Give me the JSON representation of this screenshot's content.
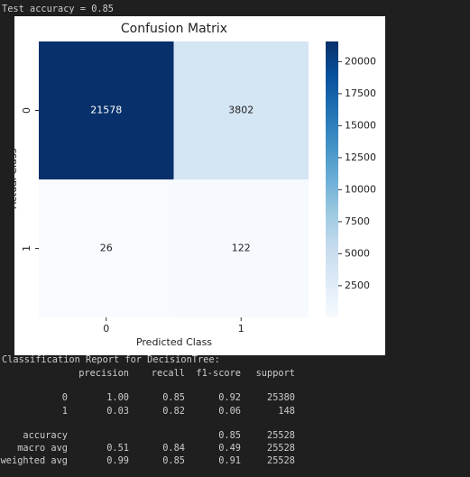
{
  "output_line": "Test accuracy = 0.85",
  "chart_data": {
    "type": "heatmap",
    "title": "Confusion Matrix",
    "xlabel": "Predicted Class",
    "ylabel": "Actual Class",
    "x_categories": [
      "0",
      "1"
    ],
    "y_categories": [
      "0",
      "1"
    ],
    "values": [
      [
        21578,
        3802
      ],
      [
        26,
        122
      ]
    ],
    "clim": [
      26,
      21578
    ],
    "cticks": [
      2500,
      5000,
      7500,
      10000,
      12500,
      15000,
      17500,
      20000
    ],
    "colormap": [
      "#f7fbff",
      "#deebf7",
      "#c6dbef",
      "#9ecae1",
      "#6baed6",
      "#4292c6",
      "#2171b5",
      "#08519c",
      "#08306b"
    ]
  },
  "report": {
    "title": "Classification Report for DecisionTree:",
    "columns": [
      "precision",
      "recall",
      "f1-score",
      "support"
    ],
    "rows": [
      {
        "label": "0",
        "cells": [
          "1.00",
          "0.85",
          "0.92",
          "25380"
        ]
      },
      {
        "label": "1",
        "cells": [
          "0.03",
          "0.82",
          "0.06",
          "148"
        ]
      },
      {
        "label": "accuracy",
        "cells": [
          null,
          null,
          "0.85",
          "25528"
        ]
      },
      {
        "label": "macro avg",
        "cells": [
          "0.51",
          "0.84",
          "0.49",
          "25528"
        ]
      },
      {
        "label": "weighted avg",
        "cells": [
          "0.99",
          "0.85",
          "0.91",
          "25528"
        ]
      }
    ]
  }
}
